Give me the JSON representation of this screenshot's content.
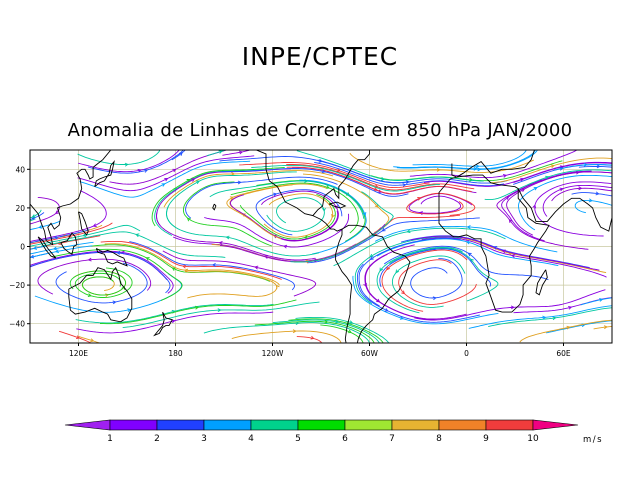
{
  "header": {
    "title": "INPE/CPTEC",
    "subtitle": "Anomalia de Linhas de Corrente em 850 hPa JAN/2000"
  },
  "map": {
    "lat_range": [
      -50,
      50
    ],
    "lon_range_east": [
      90,
      450
    ],
    "lat_ticks": [
      {
        "value": 40,
        "label": "40"
      },
      {
        "value": 20,
        "label": "20"
      },
      {
        "value": 0,
        "label": "0"
      },
      {
        "value": -20,
        "label": "−20"
      },
      {
        "value": -40,
        "label": "−40"
      }
    ],
    "lon_ticks": [
      {
        "value": 120,
        "label": "120E"
      },
      {
        "value": 180,
        "label": "180"
      },
      {
        "value": 240,
        "label": "120W"
      },
      {
        "value": 300,
        "label": "60W"
      },
      {
        "value": 360,
        "label": "0"
      },
      {
        "value": 420,
        "label": "60E"
      }
    ]
  },
  "colorbar": {
    "unit": "m/s",
    "colors": [
      "#a020f0",
      "#8000ff",
      "#2040ff",
      "#00a0ff",
      "#00d28c",
      "#00dc00",
      "#a0e632",
      "#e6b432",
      "#f08228",
      "#f03c3c",
      "#f00082"
    ],
    "labels": [
      "1",
      "2",
      "3",
      "4",
      "5",
      "6",
      "7",
      "8",
      "9",
      "10"
    ]
  },
  "palette": {
    "streamlines": [
      "#9000d0",
      "#8a00e0",
      "#2050ff",
      "#00a0ff",
      "#00c8a0",
      "#20d020",
      "#e0a020",
      "#f03838"
    ],
    "coast": "#000000",
    "grid": "#c8c8a0"
  }
}
